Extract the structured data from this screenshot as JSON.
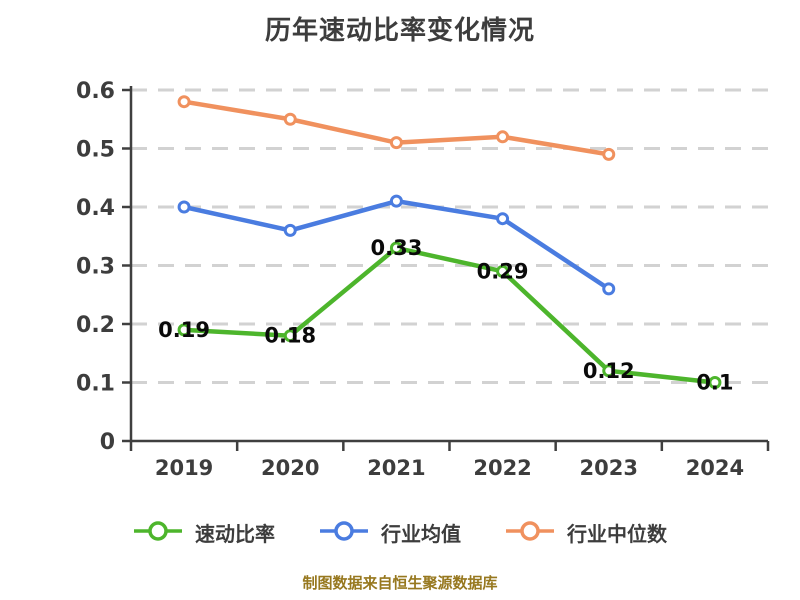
{
  "title": "历年速动比率变化情况",
  "footer_note": "制图数据来自恒生聚源数据库",
  "colors": {
    "background": "#ffffff",
    "title_text": "#3d3d3d",
    "axis": "#3f3f3f",
    "tick_label": "#3d3d3d",
    "gridline": "#d2d2d2",
    "data_label": "#0a0a0a",
    "footer_text": "#97781f",
    "marker_fill": "#ffffff"
  },
  "chart_data": {
    "type": "line",
    "title": "历年速动比率变化情况",
    "xlabel": "",
    "ylabel": "",
    "categories": [
      "2019",
      "2020",
      "2021",
      "2022",
      "2023",
      "2024"
    ],
    "series": [
      {
        "name": "速动比率",
        "color": "#4db52c",
        "values": [
          0.19,
          0.18,
          0.33,
          0.29,
          0.12,
          0.1
        ],
        "point_labels": [
          "0.19",
          "0.18",
          "0.33",
          "0.29",
          "0.12",
          "0.1"
        ]
      },
      {
        "name": "行业均值",
        "color": "#4a7ce0",
        "values": [
          0.4,
          0.36,
          0.41,
          0.38,
          0.26,
          null
        ],
        "point_labels": null
      },
      {
        "name": "行业中位数",
        "color": "#f0915e",
        "values": [
          0.58,
          0.55,
          0.51,
          0.52,
          0.49,
          null
        ],
        "point_labels": null
      }
    ],
    "ylim": [
      0,
      0.6
    ],
    "y_ticks": [
      0,
      0.1,
      0.2,
      0.3,
      0.4,
      0.5,
      0.6
    ],
    "y_tick_labels": [
      "0",
      "0.1",
      "0.2",
      "0.3",
      "0.4",
      "0.5",
      "0.6"
    ],
    "grid": "horizontal-dashed",
    "legend_position": "bottom",
    "marker_style": "open-circle"
  }
}
